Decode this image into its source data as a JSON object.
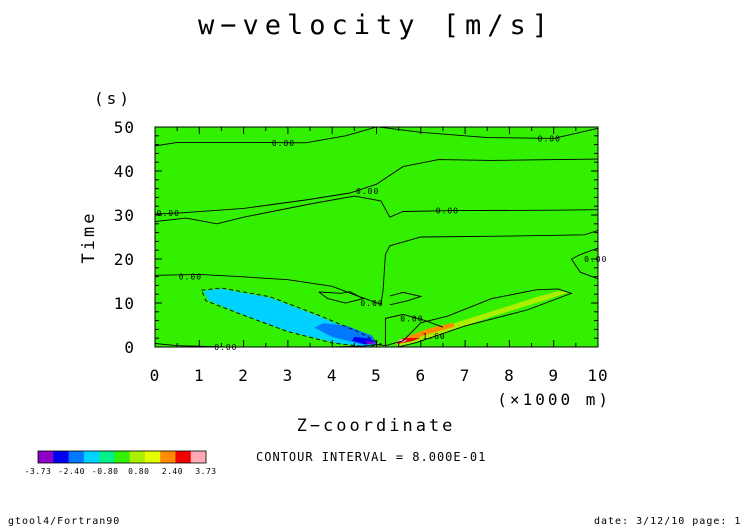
{
  "title": "w−velocity [m/s]",
  "contour_text": "CONTOUR INTERVAL = 8.000E-01",
  "footer": {
    "left": "gtool4/Fortran90",
    "right": "date: 3/12/10 page: 1"
  },
  "colors": {
    "background_field": "#32f000",
    "palette": [
      "#8c00c8",
      "#0000f0",
      "#0078ff",
      "#00d2ff",
      "#00f08c",
      "#32f000",
      "#aaf000",
      "#e6ff00",
      "#ff8c00",
      "#f00000",
      "#ffaab4"
    ]
  },
  "chart_data": {
    "type": "contour",
    "title": "w−velocity [m/s]",
    "xlabel": "Z−coordinate",
    "x_unit": "(×1000 m)",
    "ylabel": "Time",
    "y_unit": "(s)",
    "xlim": [
      0,
      10
    ],
    "ylim": [
      0,
      50
    ],
    "x_ticks": [
      "0",
      "1",
      "2",
      "3",
      "4",
      "5",
      "6",
      "7",
      "8",
      "9",
      "10"
    ],
    "y_ticks": [
      "0",
      "10",
      "20",
      "30",
      "40",
      "50"
    ],
    "contour_interval": 0.8,
    "colorbar_labels": [
      "-3.73",
      "-2.40",
      "-0.80",
      "0.80",
      "2.40",
      "3.73"
    ],
    "contour_labels": [
      {
        "text": "0.00",
        "x": 2.9,
        "y": 46.4
      },
      {
        "text": "0.00",
        "x": 8.9,
        "y": 47.4
      },
      {
        "text": "0.00",
        "x": 4.8,
        "y": 35.5
      },
      {
        "text": "0.00",
        "x": 0.3,
        "y": 30.5
      },
      {
        "text": "0.00",
        "x": 6.6,
        "y": 31.0
      },
      {
        "text": "0.00",
        "x": 9.95,
        "y": 20.0
      },
      {
        "text": "0.00",
        "x": 0.8,
        "y": 16.0
      },
      {
        "text": "0.00",
        "x": 4.9,
        "y": 10.0
      },
      {
        "text": "0.00",
        "x": 5.8,
        "y": 6.5
      },
      {
        "text": "0.00",
        "x": 1.6,
        "y": 0.0
      },
      {
        "text": "1.60",
        "x": 6.3,
        "y": 2.5
      }
    ]
  }
}
